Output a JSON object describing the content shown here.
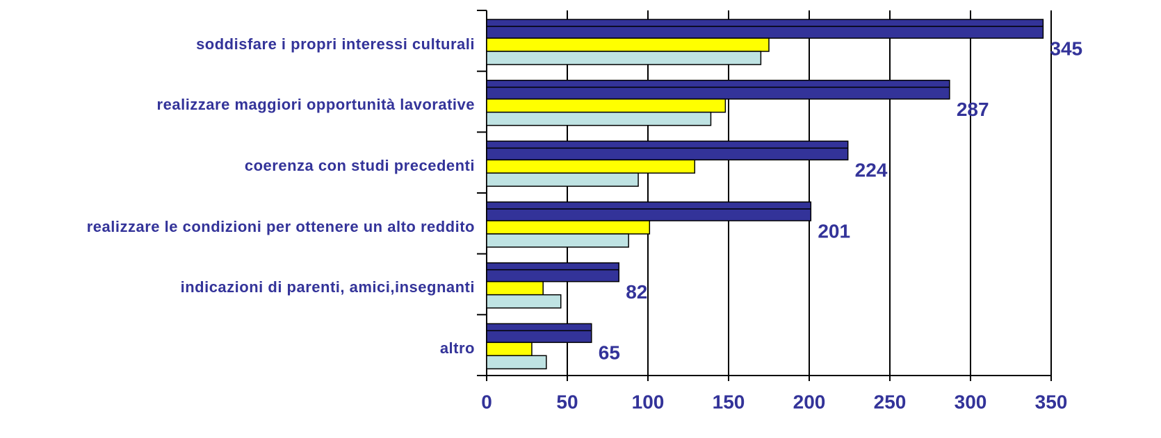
{
  "chart_data": {
    "type": "bar",
    "orientation": "horizontal",
    "categories": [
      "soddisfare i propri interessi culturali",
      "realizzare maggiori opportunità lavorative",
      "coerenza con studi precedenti",
      "realizzare le condizioni per ottenere un alto reddito",
      "indicazioni di parenti, amici,insegnanti",
      "altro"
    ],
    "series": [
      {
        "color": "#333399",
        "values": [
          345,
          287,
          224,
          201,
          82,
          65
        ],
        "show_value_labels": true
      },
      {
        "color": "#ffff00",
        "values": [
          175,
          148,
          129,
          101,
          35,
          28
        ]
      },
      {
        "color": "#bfe3e3",
        "values": [
          170,
          139,
          94,
          88,
          46,
          37
        ]
      }
    ],
    "xlim": [
      0,
      350
    ],
    "xticks": [
      0,
      50,
      100,
      150,
      200,
      250,
      300,
      350
    ],
    "grid": true
  }
}
